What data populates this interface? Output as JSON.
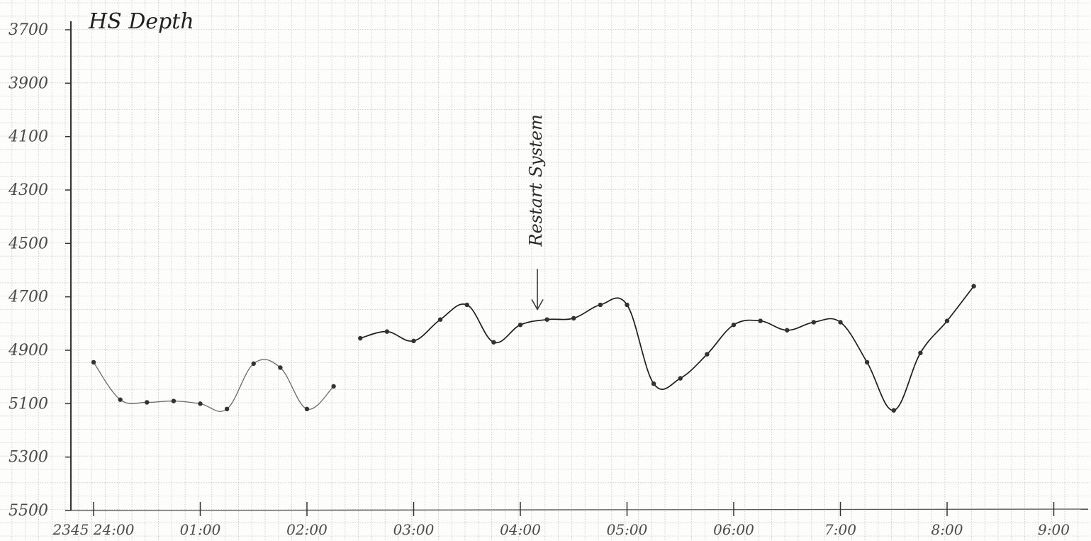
{
  "chart_data": {
    "type": "line",
    "title": "HS Depth",
    "xlabel": "",
    "ylabel": "",
    "y_inverted": true,
    "ylim": [
      5500,
      3700
    ],
    "xlim": [
      -0.15,
      9.3
    ],
    "yticks": [
      {
        "value": 3700,
        "label": "3700"
      },
      {
        "value": 3900,
        "label": "3900"
      },
      {
        "value": 4100,
        "label": "4100"
      },
      {
        "value": 4300,
        "label": "4300"
      },
      {
        "value": 4500,
        "label": "4500"
      },
      {
        "value": 4700,
        "label": "4700"
      },
      {
        "value": 4900,
        "label": "4900"
      },
      {
        "value": 5100,
        "label": "5100"
      },
      {
        "value": 5300,
        "label": "5300"
      },
      {
        "value": 5500,
        "label": "5500"
      }
    ],
    "xticks": [
      {
        "value": 0,
        "label": "2345 24:00"
      },
      {
        "value": 1,
        "label": "01:00"
      },
      {
        "value": 2,
        "label": "02:00"
      },
      {
        "value": 3,
        "label": "03:00"
      },
      {
        "value": 4,
        "label": "04:00"
      },
      {
        "value": 5,
        "label": "05:00"
      },
      {
        "value": 6,
        "label": "06:00"
      },
      {
        "value": 7,
        "label": "7:00"
      },
      {
        "value": 8,
        "label": "8:00"
      },
      {
        "value": 9,
        "label": "9:00"
      }
    ],
    "grid": true,
    "series": [
      {
        "segment": 1,
        "points": [
          [
            0.0,
            4945
          ],
          [
            0.25,
            5085
          ],
          [
            0.5,
            5095
          ],
          [
            0.75,
            5090
          ],
          [
            1.0,
            5100
          ],
          [
            1.25,
            5120
          ],
          [
            1.5,
            4950
          ],
          [
            1.75,
            4965
          ],
          [
            2.0,
            5120
          ],
          [
            2.25,
            5035
          ]
        ]
      },
      {
        "segment": 2,
        "points": [
          [
            2.5,
            4855
          ],
          [
            2.75,
            4830
          ],
          [
            3.0,
            4865
          ],
          [
            3.25,
            4785
          ],
          [
            3.5,
            4730
          ],
          [
            3.75,
            4870
          ],
          [
            4.0,
            4805
          ],
          [
            4.25,
            4785
          ],
          [
            4.5,
            4780
          ],
          [
            4.75,
            4730
          ],
          [
            5.0,
            4730
          ],
          [
            5.25,
            5025
          ],
          [
            5.5,
            5005
          ],
          [
            5.75,
            4915
          ],
          [
            6.0,
            4805
          ],
          [
            6.25,
            4790
          ],
          [
            6.5,
            4825
          ],
          [
            6.75,
            4795
          ],
          [
            7.0,
            4795
          ],
          [
            7.25,
            4945
          ],
          [
            7.5,
            5125
          ],
          [
            7.75,
            4910
          ],
          [
            8.0,
            4790
          ],
          [
            8.25,
            4660
          ]
        ]
      }
    ],
    "annotations": [
      {
        "text": "Restart System",
        "x": 4.2,
        "y": 4370,
        "rotated": true
      }
    ],
    "colors": {
      "grid": "#c4c4c4",
      "ink": "#1e1e1e",
      "pencil": "#6a6a6a",
      "paper": "#fdfdfb"
    }
  }
}
